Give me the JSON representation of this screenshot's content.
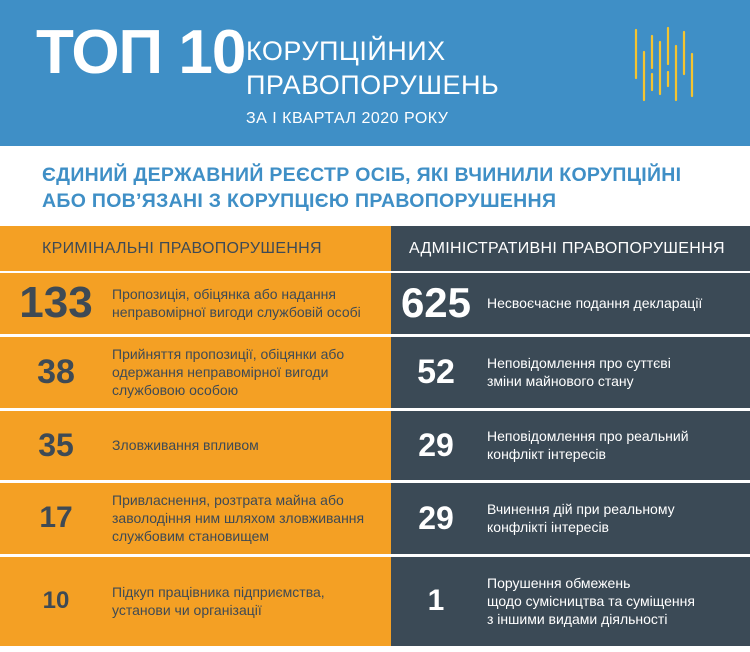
{
  "header": {
    "top_label": "ТОП 10",
    "title_line1": "КОРУПЦІЙНИХ",
    "title_line2": "ПРАВОПОРУШЕНЬ",
    "period": "ЗА І КВАРТАЛ 2020 РОКУ",
    "colors": {
      "background": "#3f8fc6",
      "logo": "#f4c430"
    }
  },
  "subtitle": {
    "line1": "ЄДИНИЙ ДЕРЖАВНИЙ РЕЄСТР ОСІБ, ЯКІ ВЧИНИЛИ КОРУПЦІЙНІ",
    "line2": "АБО ПОВ’ЯЗАНІ З КОРУПЦІЄЮ ПРАВОПОРУШЕННЯ"
  },
  "criminal": {
    "heading": "КРИМІНАЛЬНІ ПРАВОПОРУШЕННЯ",
    "color": "#f4a024",
    "items": [
      {
        "count": "133",
        "desc_lines": [
          "Пропозиція, обіцянка або надання",
          "неправомірної вигоди службовій особі"
        ]
      },
      {
        "count": "38",
        "desc_lines": [
          "Прийняття пропозиції, обіцянки або",
          "одержання неправомірної вигоди",
          "службовою особою"
        ]
      },
      {
        "count": "35",
        "desc_lines": [
          "Зловживання впливом"
        ]
      },
      {
        "count": "17",
        "desc_lines": [
          "Привласнення, розтрата майна або",
          "заволодіння ним шляхом зловживання",
          "службовим становищем"
        ]
      },
      {
        "count": "10",
        "desc_lines": [
          "Підкуп працівника підприємства,",
          "установи чи організації"
        ]
      }
    ]
  },
  "administrative": {
    "heading": "АДМІНІСТРАТИВНІ ПРАВОПОРУШЕННЯ",
    "color": "#3b4a56",
    "items": [
      {
        "count": "625",
        "desc_lines": [
          "Несвоєчасне подання декларації"
        ]
      },
      {
        "count": "52",
        "desc_lines": [
          "Неповідомлення про суттєві",
          "зміни майнового стану"
        ]
      },
      {
        "count": "29",
        "desc_lines": [
          "Неповідомлення про реальний",
          "конфлікт інтересів"
        ]
      },
      {
        "count": "29",
        "desc_lines": [
          "Вчинення дій при реальному",
          "конфлікті інтересів"
        ]
      },
      {
        "count": "1",
        "desc_lines": [
          "Порушення обмежень",
          "щодо сумісництва та суміщення",
          "з іншими видами діяльності"
        ]
      }
    ]
  }
}
